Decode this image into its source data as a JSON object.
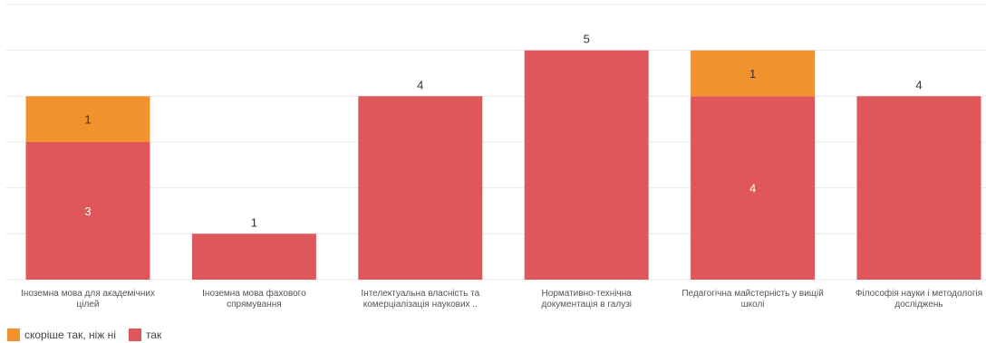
{
  "colors": {
    "series_a": "#f2922e",
    "series_b": "#e0575b",
    "grid": "#e9e9e9",
    "axis_text": "#555555",
    "value_text_dark": "#333333",
    "value_text_light": "#ffffff"
  },
  "legend": {
    "items": [
      {
        "label": "скоріше так, ніж ні"
      },
      {
        "label": "так"
      }
    ]
  },
  "chart_data": {
    "type": "bar",
    "stacked": true,
    "ylim": [
      0,
      6
    ],
    "grid": true,
    "legend_position": "bottom-left",
    "categories": [
      [
        "Іноземна мова для академічних",
        "цілей"
      ],
      [
        "Іноземна мова фахового",
        "спрямування"
      ],
      [
        "Інтелектуальна власність та",
        "комерціалізація наукових .."
      ],
      [
        "Нормативно-технічна",
        "документація в галузі"
      ],
      [
        "Педагогічна майстерність у вищій",
        "школі"
      ],
      [
        "Філософія науки і методологія",
        "досліджень"
      ]
    ],
    "series": [
      {
        "name": "так",
        "values": [
          3,
          1,
          4,
          5,
          4,
          4
        ]
      },
      {
        "name": "скоріше так, ніж ні",
        "values": [
          1,
          0,
          0,
          0,
          1,
          0
        ]
      }
    ],
    "totals": [
      4,
      1,
      4,
      5,
      5,
      4
    ]
  }
}
